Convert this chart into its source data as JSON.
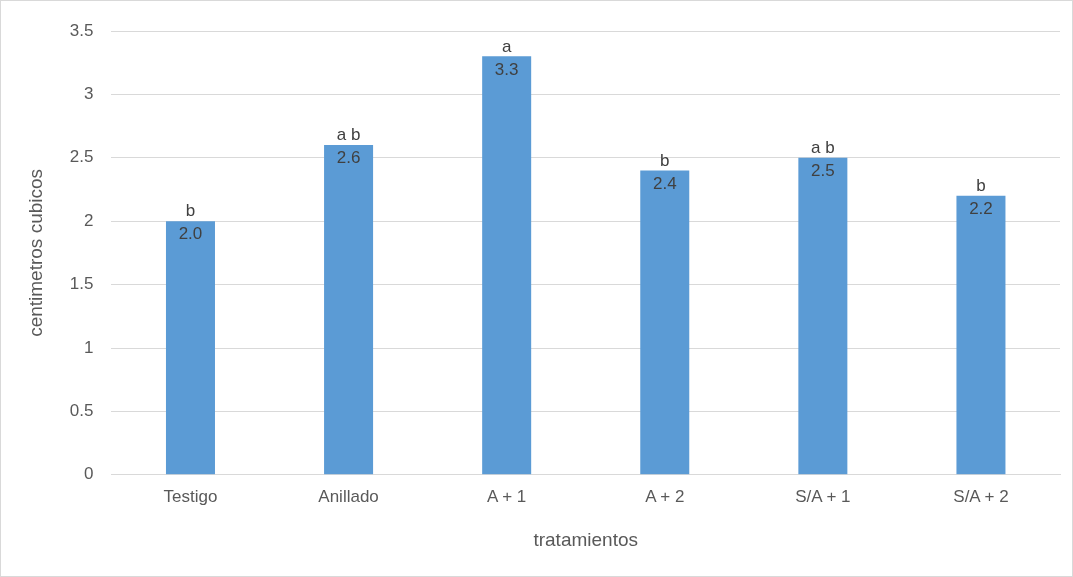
{
  "chart_data": {
    "type": "bar",
    "xlabel": "tratamientos",
    "ylabel": "centimetros cubicos",
    "categories": [
      "Testigo",
      "Anillado",
      "A + 1",
      "A + 2",
      "S/A + 1",
      "S/A + 2"
    ],
    "values": [
      2.0,
      2.6,
      3.3,
      2.4,
      2.5,
      2.2
    ],
    "value_labels": [
      "2.0",
      "2.6",
      "3.3",
      "2.4",
      "2.5",
      "2.2"
    ],
    "color": "#5b9bd5",
    "ylim": [
      0,
      3.5
    ],
    "yticks": [
      0,
      0.5,
      1,
      1.5,
      2,
      2.5,
      3,
      3.5
    ],
    "grid": "y",
    "annotations": [
      {
        "text": "b",
        "x": "Testigo",
        "y": 2.0
      },
      {
        "text": "a b",
        "x": "Anillado",
        "y": 2.6
      },
      {
        "text": "a",
        "x": "A + 1",
        "y": 3.3
      },
      {
        "text": "b",
        "x": "A + 2",
        "y": 2.4
      },
      {
        "text": "a b",
        "x": "S/A + 1",
        "y": 2.5
      },
      {
        "text": "b",
        "x": "S/A + 2",
        "y": 2.2
      }
    ]
  }
}
